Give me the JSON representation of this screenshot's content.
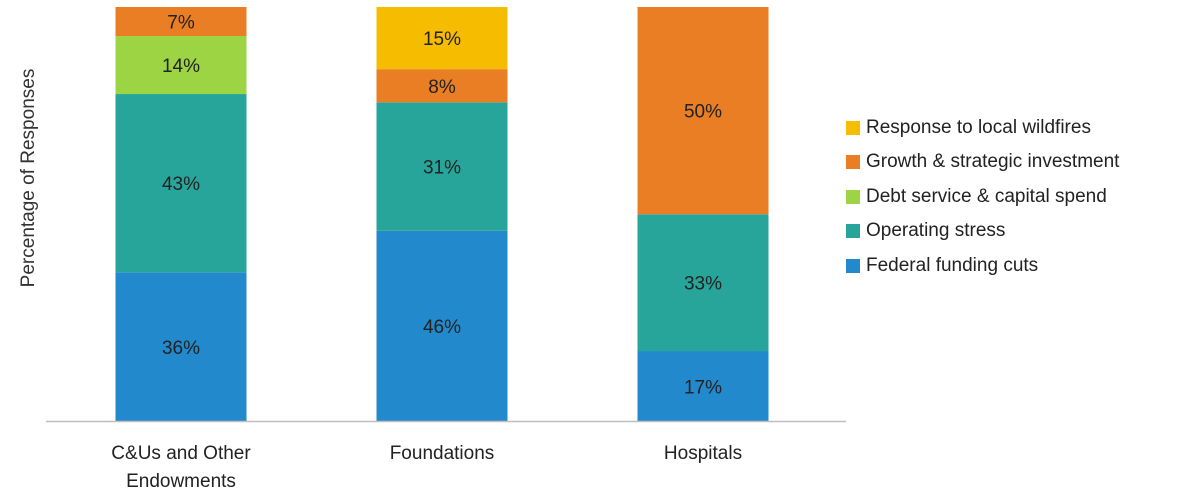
{
  "chart_data": {
    "type": "bar",
    "stacked": true,
    "ylabel": "Percentage of Responses",
    "xlabel": "",
    "ylim": [
      0,
      100
    ],
    "grid": false,
    "legend_position": "right",
    "categories": [
      [
        "C&Us and Other",
        "Endowments"
      ],
      [
        "Foundations"
      ],
      [
        "Hospitals"
      ]
    ],
    "series": [
      {
        "name": "Federal funding cuts",
        "color": "#2289cc",
        "values": [
          36,
          46,
          17
        ],
        "labels": [
          "36%",
          "46%",
          "17%"
        ]
      },
      {
        "name": "Operating stress",
        "color": "#27a59a",
        "values": [
          43,
          31,
          33
        ],
        "labels": [
          "43%",
          "31%",
          "33%"
        ]
      },
      {
        "name": "Debt service & capital spend",
        "color": "#9dd444",
        "values": [
          14,
          0,
          0
        ],
        "labels": [
          "14%",
          "",
          ""
        ]
      },
      {
        "name": "Growth & strategic investment",
        "color": "#e97e24",
        "values": [
          7,
          8,
          50
        ],
        "labels": [
          "7%",
          "8%",
          "50%"
        ]
      },
      {
        "name": "Response to local wildfires",
        "color": "#f5bc00",
        "values": [
          0,
          15,
          0
        ],
        "labels": [
          "",
          "15%",
          ""
        ]
      }
    ]
  }
}
